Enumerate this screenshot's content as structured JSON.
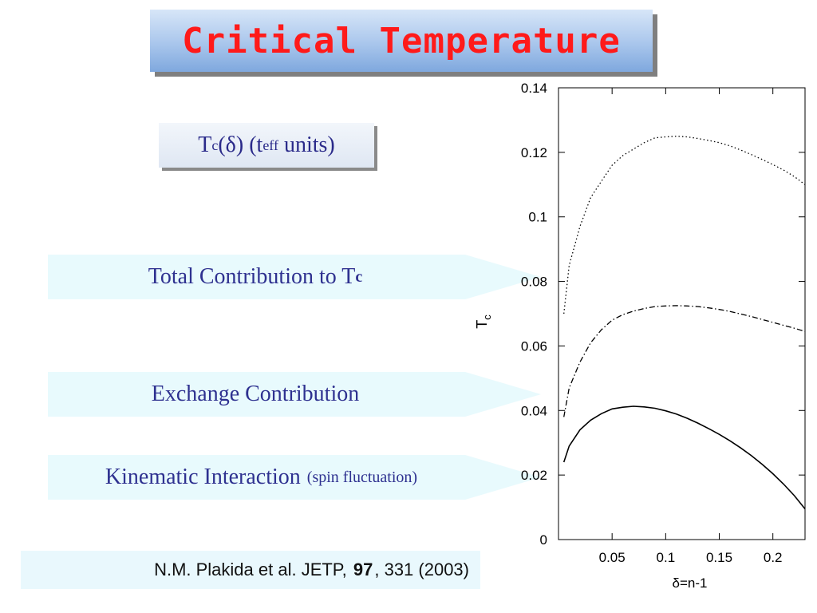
{
  "title": "Critical Temperature",
  "tc_box": {
    "T": "T",
    "c_sub": "c",
    "delta_part": "(δ) (t",
    "eff_sub": "eff",
    "units": " units)"
  },
  "labels": {
    "total": {
      "text": "Total Contribution to T",
      "sub": "c"
    },
    "exchange": {
      "text": "Exchange Contribution"
    },
    "kinematic": {
      "text": "Kinematic Interaction",
      "small": "(spin fluctuation)"
    }
  },
  "citation": {
    "prefix": "N.M. Plakida et al. JETP, ",
    "volume": "97",
    "suffix": ", 331 (2003)"
  },
  "colors": {
    "title_text": "#ff1a1a",
    "label_text": "#2e3190",
    "label_fill": "#e8fafd"
  },
  "chart_data": {
    "type": "line",
    "xlabel": "δ=n-1",
    "ylabel": "T",
    "ylabel_sub": "c",
    "xlim": [
      0,
      0.23
    ],
    "ylim": [
      0,
      0.14
    ],
    "xticks": [
      0.05,
      0.1,
      0.15,
      0.2
    ],
    "xtick_labels": [
      "0.05",
      "0.1",
      "0.15",
      "0.2"
    ],
    "yticks": [
      0,
      0.02,
      0.04,
      0.06,
      0.08,
      0.1,
      0.12,
      0.14
    ],
    "ytick_labels": [
      "0",
      "0.02",
      "0.04",
      "0.06",
      "0.08",
      "0.1",
      "0.12",
      "0.14"
    ],
    "series": [
      {
        "style": "dotted",
        "x": [
          0.005,
          0.01,
          0.02,
          0.03,
          0.04,
          0.05,
          0.06,
          0.07,
          0.08,
          0.09,
          0.1,
          0.11,
          0.12,
          0.13,
          0.14,
          0.15,
          0.16,
          0.17,
          0.18,
          0.19,
          0.2,
          0.21,
          0.22,
          0.23
        ],
        "y": [
          0.07,
          0.085,
          0.097,
          0.106,
          0.111,
          0.116,
          0.119,
          0.121,
          0.123,
          0.1245,
          0.1248,
          0.125,
          0.1248,
          0.1243,
          0.1237,
          0.123,
          0.122,
          0.1207,
          0.1193,
          0.1178,
          0.1162,
          0.1145,
          0.1125,
          0.11
        ]
      },
      {
        "style": "dash-dot",
        "x": [
          0.005,
          0.01,
          0.02,
          0.03,
          0.04,
          0.05,
          0.06,
          0.07,
          0.08,
          0.09,
          0.1,
          0.11,
          0.12,
          0.13,
          0.14,
          0.15,
          0.16,
          0.17,
          0.18,
          0.19,
          0.2,
          0.21,
          0.22,
          0.23
        ],
        "y": [
          0.038,
          0.047,
          0.055,
          0.061,
          0.065,
          0.068,
          0.0697,
          0.0708,
          0.0716,
          0.0722,
          0.0724,
          0.0725,
          0.0724,
          0.0722,
          0.0718,
          0.0713,
          0.0707,
          0.0699,
          0.0691,
          0.0682,
          0.0673,
          0.0664,
          0.0655,
          0.0645
        ]
      },
      {
        "style": "solid",
        "x": [
          0.005,
          0.01,
          0.02,
          0.03,
          0.04,
          0.05,
          0.06,
          0.07,
          0.08,
          0.09,
          0.1,
          0.11,
          0.12,
          0.13,
          0.14,
          0.15,
          0.16,
          0.17,
          0.18,
          0.19,
          0.2,
          0.21,
          0.22,
          0.23
        ],
        "y": [
          0.024,
          0.029,
          0.034,
          0.037,
          0.039,
          0.0405,
          0.041,
          0.0413,
          0.0411,
          0.0407,
          0.0399,
          0.0389,
          0.0376,
          0.0361,
          0.0344,
          0.0326,
          0.0306,
          0.0284,
          0.026,
          0.0233,
          0.0204,
          0.0172,
          0.0136,
          0.0095
        ]
      }
    ]
  }
}
